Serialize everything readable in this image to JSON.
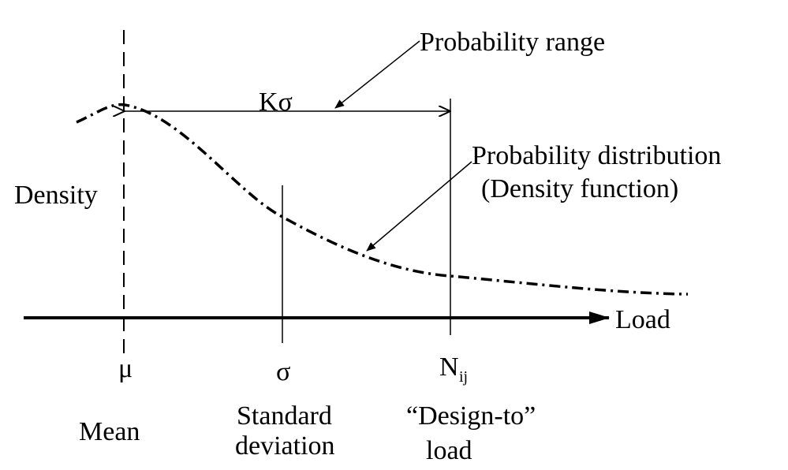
{
  "annotations": {
    "probability_range": "Probability range",
    "k_sigma": "Kσ",
    "distribution": "Probability distribution",
    "density_function": "(Density function)"
  },
  "axes": {
    "y_label": "Density",
    "x_label": "Load"
  },
  "markers": [
    {
      "symbol": "μ",
      "caption": [
        "Mean"
      ]
    },
    {
      "symbol": "σ",
      "caption": [
        "Standard",
        "deviation"
      ]
    },
    {
      "symbol": "N",
      "subscript": "ij",
      "caption": [
        "“Design-to”",
        "load"
      ]
    }
  ]
}
